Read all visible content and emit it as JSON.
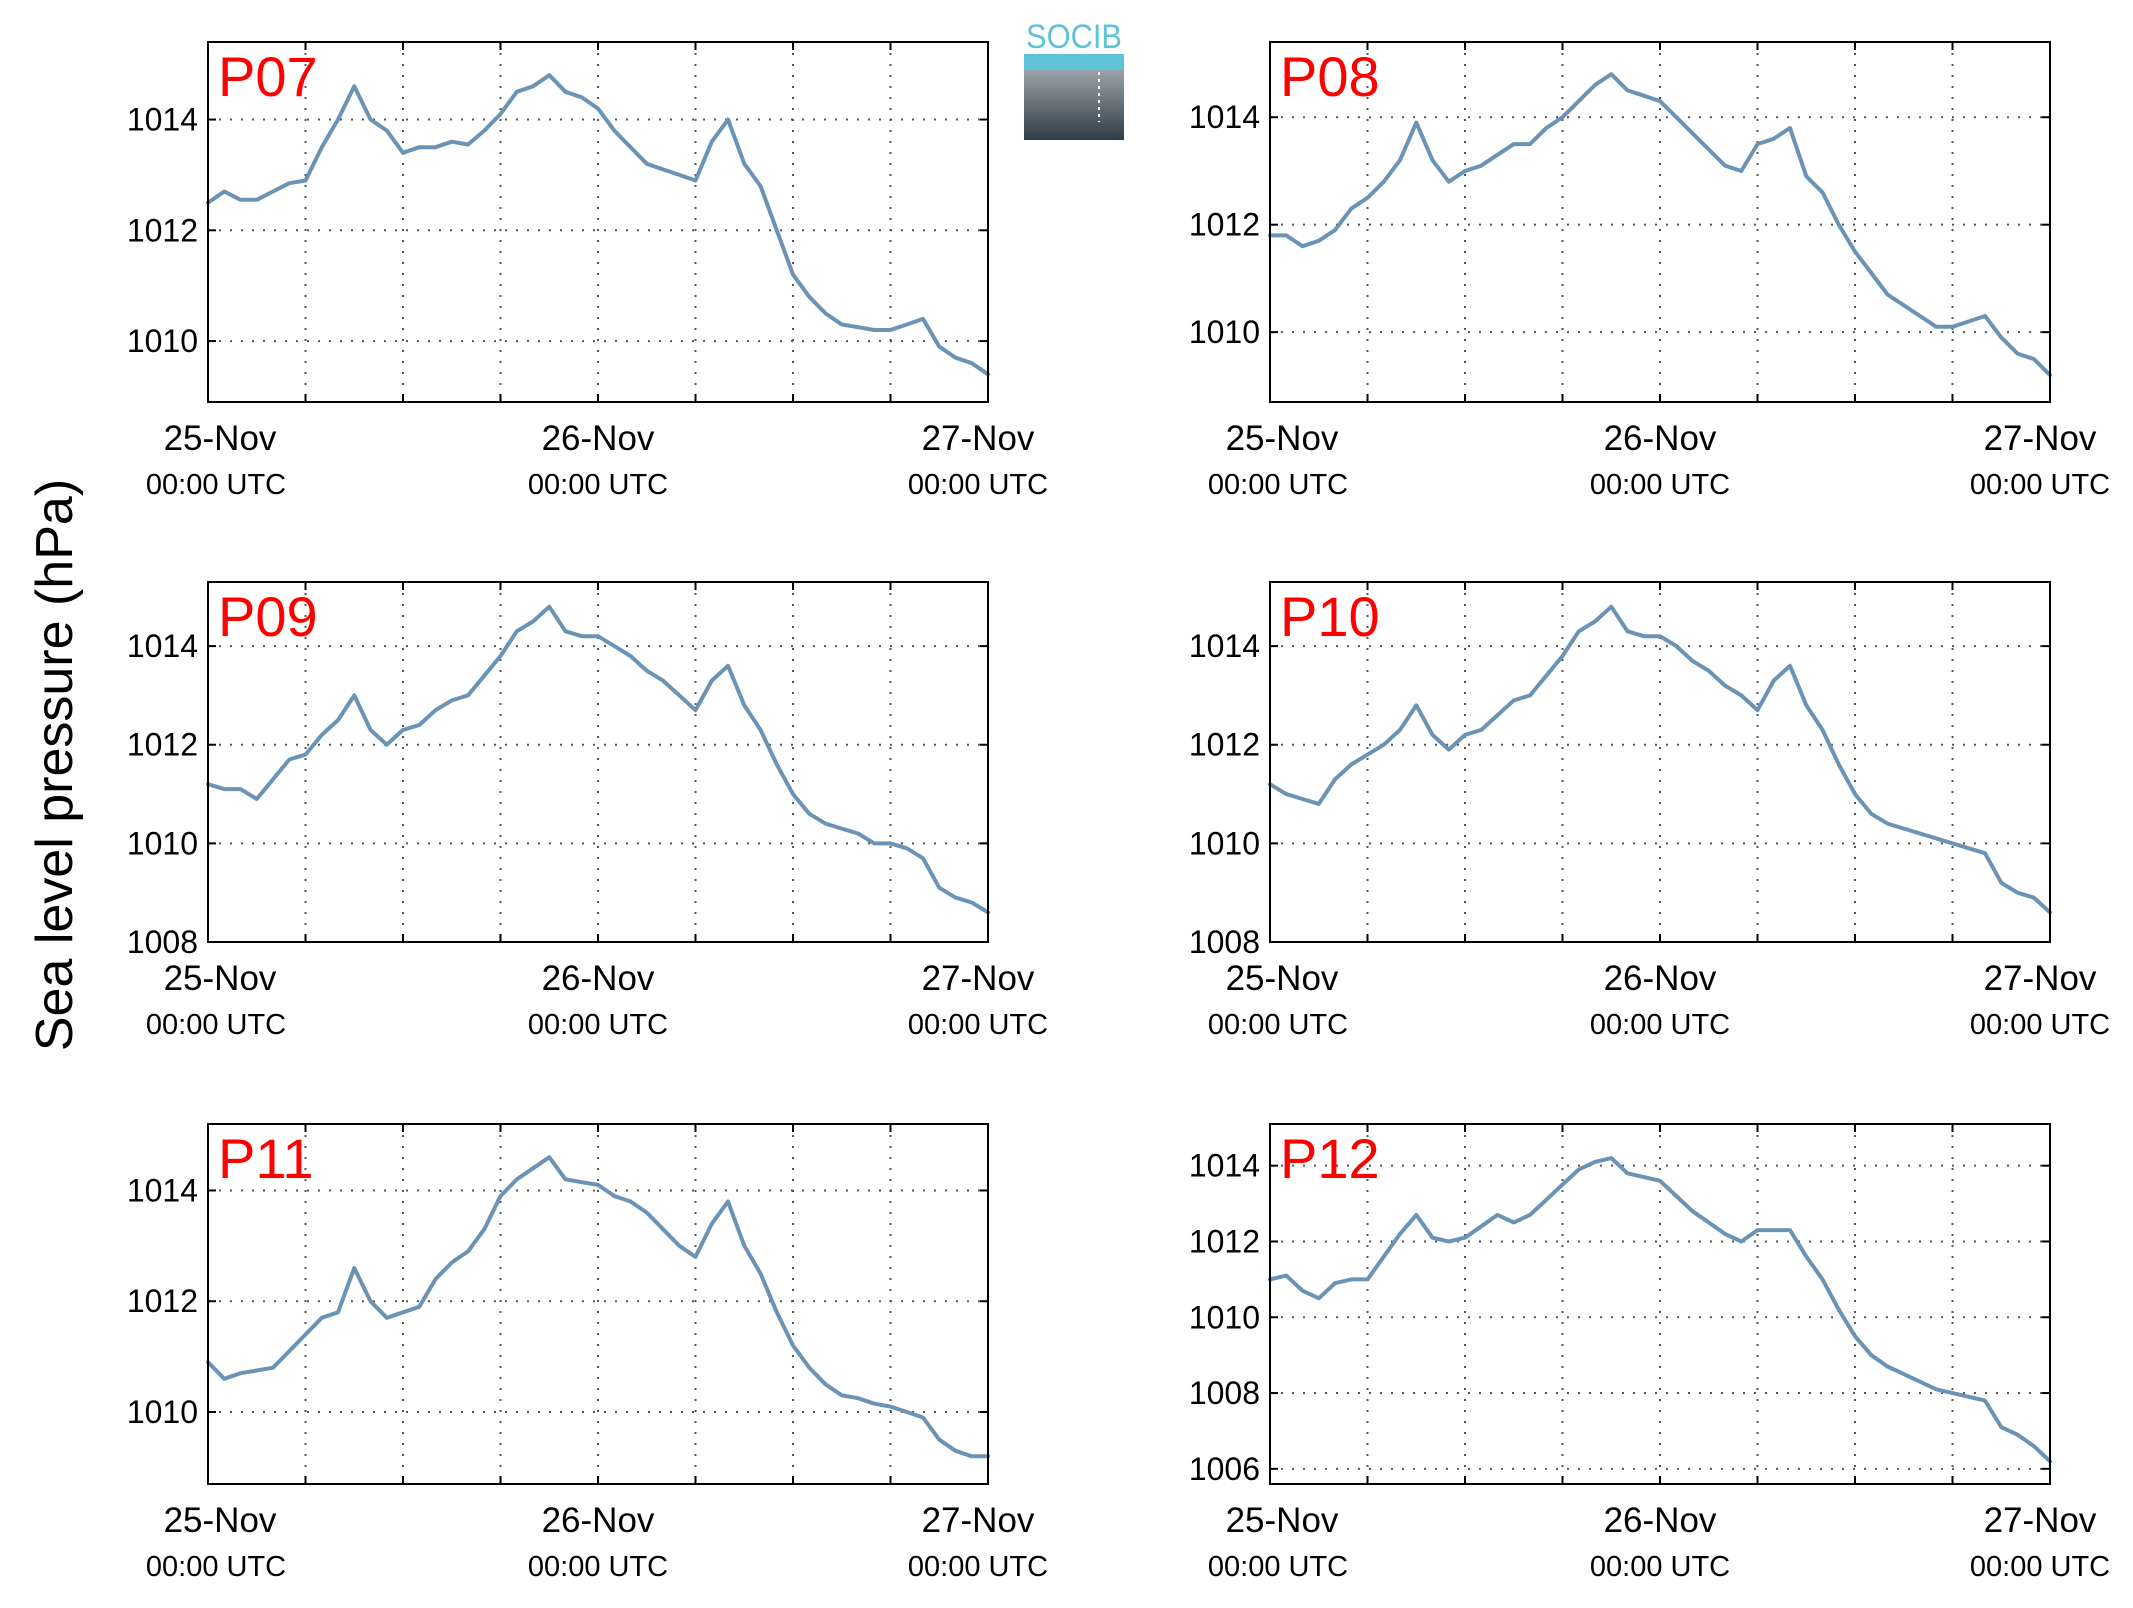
{
  "figure": {
    "ylabel": "Sea level pressure (hPa)",
    "logo_text": "SOCIB",
    "colors": {
      "line": "#6b93b5",
      "panel_label": "#ff0000",
      "axis": "#000000",
      "grid": "#555555",
      "logo_top": "#5ec3d6",
      "logo_bottom": "#2f3c46"
    }
  },
  "chart_data": [
    {
      "type": "line",
      "label": "P07",
      "xticks": [
        {
          "date": "25-Nov",
          "time": "00:00 UTC"
        },
        {
          "date": "26-Nov",
          "time": "00:00 UTC"
        },
        {
          "date": "27-Nov",
          "time": "00:00 UTC"
        }
      ],
      "x_minor_hours": [
        6,
        12,
        18,
        30,
        36,
        42
      ],
      "xlim": [
        "2019-11-25T00:00Z",
        "2019-11-27T00:00Z"
      ],
      "ylim": [
        1008.9,
        1015.4
      ],
      "yticks": [
        1010,
        1012,
        1014
      ],
      "grid": true,
      "x_hours": [
        0,
        1,
        2,
        3,
        4,
        5,
        6,
        7,
        8,
        9,
        10,
        11,
        12,
        13,
        14,
        15,
        16,
        17,
        18,
        19,
        20,
        21,
        22,
        23,
        24,
        25,
        26,
        27,
        28,
        29,
        30,
        31,
        32,
        33,
        34,
        35,
        36,
        37,
        38,
        39,
        40,
        41,
        42,
        43,
        44,
        45,
        46,
        47,
        48
      ],
      "values": [
        1012.5,
        1012.7,
        1012.55,
        1012.55,
        1012.7,
        1012.85,
        1012.9,
        1013.5,
        1014.0,
        1014.6,
        1014.0,
        1013.8,
        1013.4,
        1013.5,
        1013.5,
        1013.6,
        1013.55,
        1013.8,
        1014.1,
        1014.5,
        1014.6,
        1014.8,
        1014.5,
        1014.4,
        1014.2,
        1013.8,
        1013.5,
        1013.2,
        1013.1,
        1013.0,
        1012.9,
        1013.6,
        1014.0,
        1013.2,
        1012.8,
        1012.0,
        1011.2,
        1010.8,
        1010.5,
        1010.3,
        1010.25,
        1010.2,
        1010.2,
        1010.3,
        1010.4,
        1009.9,
        1009.7,
        1009.6,
        1009.4
      ]
    },
    {
      "type": "line",
      "label": "P08",
      "xticks": [
        {
          "date": "25-Nov",
          "time": "00:00 UTC"
        },
        {
          "date": "26-Nov",
          "time": "00:00 UTC"
        },
        {
          "date": "27-Nov",
          "time": "00:00 UTC"
        }
      ],
      "x_minor_hours": [
        6,
        12,
        18,
        30,
        36,
        42
      ],
      "xlim": [
        "2019-11-25T00:00Z",
        "2019-11-27T00:00Z"
      ],
      "ylim": [
        1008.7,
        1015.4
      ],
      "yticks": [
        1010,
        1012,
        1014
      ],
      "grid": true,
      "x_hours": [
        0,
        1,
        2,
        3,
        4,
        5,
        6,
        7,
        8,
        9,
        10,
        11,
        12,
        13,
        14,
        15,
        16,
        17,
        18,
        19,
        20,
        21,
        22,
        23,
        24,
        25,
        26,
        27,
        28,
        29,
        30,
        31,
        32,
        33,
        34,
        35,
        36,
        37,
        38,
        39,
        40,
        41,
        42,
        43,
        44,
        45,
        46,
        47,
        48
      ],
      "values": [
        1011.8,
        1011.8,
        1011.6,
        1011.7,
        1011.9,
        1012.3,
        1012.5,
        1012.8,
        1013.2,
        1013.9,
        1013.2,
        1012.8,
        1013.0,
        1013.1,
        1013.3,
        1013.5,
        1013.5,
        1013.8,
        1014.0,
        1014.3,
        1014.6,
        1014.8,
        1014.5,
        1014.4,
        1014.3,
        1014.0,
        1013.7,
        1013.4,
        1013.1,
        1013.0,
        1013.5,
        1013.6,
        1013.8,
        1012.9,
        1012.6,
        1012.0,
        1011.5,
        1011.1,
        1010.7,
        1010.5,
        1010.3,
        1010.1,
        1010.1,
        1010.2,
        1010.3,
        1009.9,
        1009.6,
        1009.5,
        1009.2
      ]
    },
    {
      "type": "line",
      "label": "P09",
      "xticks": [
        {
          "date": "25-Nov",
          "time": "00:00 UTC"
        },
        {
          "date": "26-Nov",
          "time": "00:00 UTC"
        },
        {
          "date": "27-Nov",
          "time": "00:00 UTC"
        }
      ],
      "x_minor_hours": [
        6,
        12,
        18,
        30,
        36,
        42
      ],
      "xlim": [
        "2019-11-25T00:00Z",
        "2019-11-27T00:00Z"
      ],
      "ylim": [
        1008,
        1015.3
      ],
      "yticks": [
        1008,
        1010,
        1012,
        1014
      ],
      "grid": true,
      "x_hours": [
        0,
        1,
        2,
        3,
        4,
        5,
        6,
        7,
        8,
        9,
        10,
        11,
        12,
        13,
        14,
        15,
        16,
        17,
        18,
        19,
        20,
        21,
        22,
        23,
        24,
        25,
        26,
        27,
        28,
        29,
        30,
        31,
        32,
        33,
        34,
        35,
        36,
        37,
        38,
        39,
        40,
        41,
        42,
        43,
        44,
        45,
        46,
        47,
        48
      ],
      "values": [
        1011.2,
        1011.1,
        1011.1,
        1010.9,
        1011.3,
        1011.7,
        1011.8,
        1012.2,
        1012.5,
        1013.0,
        1012.3,
        1012.0,
        1012.3,
        1012.4,
        1012.7,
        1012.9,
        1013.0,
        1013.4,
        1013.8,
        1014.3,
        1014.5,
        1014.8,
        1014.3,
        1014.2,
        1014.2,
        1014.0,
        1013.8,
        1013.5,
        1013.3,
        1013.0,
        1012.7,
        1013.3,
        1013.6,
        1012.8,
        1012.3,
        1011.6,
        1011.0,
        1010.6,
        1010.4,
        1010.3,
        1010.2,
        1010.0,
        1010.0,
        1009.9,
        1009.7,
        1009.1,
        1008.9,
        1008.8,
        1008.6
      ]
    },
    {
      "type": "line",
      "label": "P10",
      "xticks": [
        {
          "date": "25-Nov",
          "time": "00:00 UTC"
        },
        {
          "date": "26-Nov",
          "time": "00:00 UTC"
        },
        {
          "date": "27-Nov",
          "time": "00:00 UTC"
        }
      ],
      "x_minor_hours": [
        6,
        12,
        18,
        30,
        36,
        42
      ],
      "xlim": [
        "2019-11-25T00:00Z",
        "2019-11-27T00:00Z"
      ],
      "ylim": [
        1008,
        1015.3
      ],
      "yticks": [
        1008,
        1010,
        1012,
        1014
      ],
      "grid": true,
      "x_hours": [
        0,
        1,
        2,
        3,
        4,
        5,
        6,
        7,
        8,
        9,
        10,
        11,
        12,
        13,
        14,
        15,
        16,
        17,
        18,
        19,
        20,
        21,
        22,
        23,
        24,
        25,
        26,
        27,
        28,
        29,
        30,
        31,
        32,
        33,
        34,
        35,
        36,
        37,
        38,
        39,
        40,
        41,
        42,
        43,
        44,
        45,
        46,
        47,
        48
      ],
      "values": [
        1011.2,
        1011.0,
        1010.9,
        1010.8,
        1011.3,
        1011.6,
        1011.8,
        1012.0,
        1012.3,
        1012.8,
        1012.2,
        1011.9,
        1012.2,
        1012.3,
        1012.6,
        1012.9,
        1013.0,
        1013.4,
        1013.8,
        1014.3,
        1014.5,
        1014.8,
        1014.3,
        1014.2,
        1014.2,
        1014.0,
        1013.7,
        1013.5,
        1013.2,
        1013.0,
        1012.7,
        1013.3,
        1013.6,
        1012.8,
        1012.3,
        1011.6,
        1011.0,
        1010.6,
        1010.4,
        1010.3,
        1010.2,
        1010.1,
        1010.0,
        1009.9,
        1009.8,
        1009.2,
        1009.0,
        1008.9,
        1008.6
      ]
    },
    {
      "type": "line",
      "label": "P11",
      "xticks": [
        {
          "date": "25-Nov",
          "time": "00:00 UTC"
        },
        {
          "date": "26-Nov",
          "time": "00:00 UTC"
        },
        {
          "date": "27-Nov",
          "time": "00:00 UTC"
        }
      ],
      "x_minor_hours": [
        6,
        12,
        18,
        30,
        36,
        42
      ],
      "xlim": [
        "2019-11-25T00:00Z",
        "2019-11-27T00:00Z"
      ],
      "ylim": [
        1008.7,
        1015.2
      ],
      "yticks": [
        1010,
        1012,
        1014
      ],
      "grid": true,
      "x_hours": [
        0,
        1,
        2,
        3,
        4,
        5,
        6,
        7,
        8,
        9,
        10,
        11,
        12,
        13,
        14,
        15,
        16,
        17,
        18,
        19,
        20,
        21,
        22,
        23,
        24,
        25,
        26,
        27,
        28,
        29,
        30,
        31,
        32,
        33,
        34,
        35,
        36,
        37,
        38,
        39,
        40,
        41,
        42,
        43,
        44,
        45,
        46,
        47,
        48
      ],
      "values": [
        1010.9,
        1010.6,
        1010.7,
        1010.75,
        1010.8,
        1011.1,
        1011.4,
        1011.7,
        1011.8,
        1012.6,
        1012.0,
        1011.7,
        1011.8,
        1011.9,
        1012.4,
        1012.7,
        1012.9,
        1013.3,
        1013.9,
        1014.2,
        1014.4,
        1014.6,
        1014.2,
        1014.15,
        1014.1,
        1013.9,
        1013.8,
        1013.6,
        1013.3,
        1013.0,
        1012.8,
        1013.4,
        1013.8,
        1013.0,
        1012.5,
        1011.8,
        1011.2,
        1010.8,
        1010.5,
        1010.3,
        1010.25,
        1010.15,
        1010.1,
        1010.0,
        1009.9,
        1009.5,
        1009.3,
        1009.2,
        1009.2
      ]
    },
    {
      "type": "line",
      "label": "P12",
      "xticks": [
        {
          "date": "25-Nov",
          "time": "00:00 UTC"
        },
        {
          "date": "26-Nov",
          "time": "00:00 UTC"
        },
        {
          "date": "27-Nov",
          "time": "00:00 UTC"
        }
      ],
      "x_minor_hours": [
        6,
        12,
        18,
        30,
        36,
        42
      ],
      "xlim": [
        "2019-11-25T00:00Z",
        "2019-11-27T00:00Z"
      ],
      "ylim": [
        1005.6,
        1015.1
      ],
      "yticks": [
        1006,
        1008,
        1010,
        1012,
        1014
      ],
      "grid": true,
      "x_hours": [
        0,
        1,
        2,
        3,
        4,
        5,
        6,
        7,
        8,
        9,
        10,
        11,
        12,
        13,
        14,
        15,
        16,
        17,
        18,
        19,
        20,
        21,
        22,
        23,
        24,
        25,
        26,
        27,
        28,
        29,
        30,
        31,
        32,
        33,
        34,
        35,
        36,
        37,
        38,
        39,
        40,
        41,
        42,
        43,
        44,
        45,
        46,
        47,
        48
      ],
      "values": [
        1011.0,
        1011.1,
        1010.7,
        1010.5,
        1010.9,
        1011.0,
        1011.0,
        1011.6,
        1012.2,
        1012.7,
        1012.1,
        1012.0,
        1012.1,
        1012.4,
        1012.7,
        1012.5,
        1012.7,
        1013.1,
        1013.5,
        1013.9,
        1014.1,
        1014.2,
        1013.8,
        1013.7,
        1013.6,
        1013.2,
        1012.8,
        1012.5,
        1012.2,
        1012.0,
        1012.3,
        1012.3,
        1012.3,
        1011.6,
        1011.0,
        1010.2,
        1009.5,
        1009.0,
        1008.7,
        1008.5,
        1008.3,
        1008.1,
        1008.0,
        1007.9,
        1007.8,
        1007.1,
        1006.9,
        1006.6,
        1006.2
      ]
    }
  ]
}
